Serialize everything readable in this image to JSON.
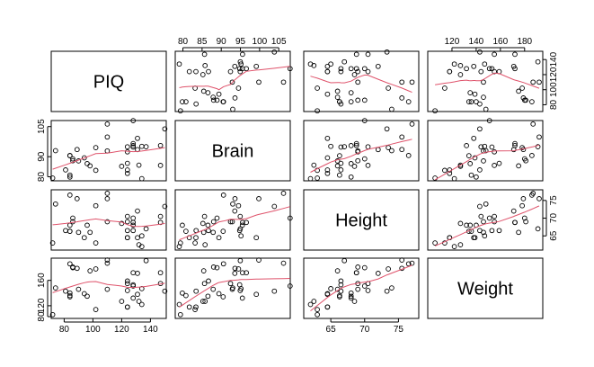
{
  "chart_data": {
    "type": "scatter",
    "variables": [
      "PIQ",
      "Brain",
      "Height",
      "Weight"
    ],
    "axes": {
      "PIQ": {
        "range": [
          71,
          151
        ],
        "ticks": [
          80,
          100,
          120,
          140
        ],
        "tick_labels": [
          "80",
          "100",
          "120",
          "140"
        ]
      },
      "Brain": {
        "range": [
          78,
          108
        ],
        "ticks": [
          80,
          85,
          90,
          95,
          100,
          105
        ],
        "tick_labels": [
          "80",
          "85",
          "90",
          "95",
          "100",
          "105"
        ],
        "side_ticks": [
          80,
          90,
          105
        ],
        "side_tick_labels": [
          "80",
          "90",
          "105"
        ]
      },
      "Height": {
        "range": [
          61,
          78
        ],
        "ticks": [
          65,
          70,
          75
        ],
        "tick_labels": [
          "65",
          "70",
          "75"
        ]
      },
      "Weight": {
        "range": [
          100,
          195
        ],
        "ticks": [
          120,
          140,
          160,
          180
        ],
        "tick_labels": [
          "120",
          "140",
          "160",
          "180"
        ],
        "side_ticks": [
          80,
          120,
          160
        ],
        "side_tick_labels": [
          "80",
          "120",
          "160"
        ]
      }
    },
    "tick_placement": {
      "top": [
        "Brain",
        "Weight"
      ],
      "bottom": [
        "PIQ",
        "Height"
      ],
      "left": [
        "Brain",
        "Weight"
      ],
      "right": [
        "PIQ",
        "Height"
      ]
    },
    "data": {
      "PIQ": [
        124,
        150,
        128,
        134,
        110,
        131,
        98,
        84,
        147,
        124,
        128,
        124,
        147,
        90,
        96,
        120,
        102,
        84,
        86,
        84,
        134,
        128,
        102,
        131,
        84,
        110,
        72,
        124,
        132,
        137,
        110,
        86,
        81,
        128,
        124,
        94,
        74,
        89
      ],
      "Brain": [
        81.69,
        103.84,
        96.54,
        95.15,
        92.88,
        99.13,
        85.43,
        90.49,
        95.55,
        83.39,
        107.95,
        92.41,
        85.65,
        87.89,
        86.54,
        85.22,
        94.51,
        80.8,
        88.91,
        90.59,
        79.06,
        95.5,
        83.18,
        93.55,
        79.86,
        106.25,
        79.35,
        86.67,
        85.78,
        94.96,
        99.79,
        88.0,
        83.43,
        94.81,
        94.94,
        89.4,
        93.0,
        93.59
      ],
      "Height": [
        64.5,
        73.3,
        68.8,
        65.0,
        69.0,
        64.5,
        66.0,
        66.3,
        68.8,
        64.5,
        70.0,
        69.0,
        70.5,
        66.0,
        68.0,
        68.5,
        73.5,
        66.3,
        70.0,
        76.5,
        62.0,
        68.0,
        63.0,
        72.0,
        68.0,
        77.0,
        63.0,
        66.5,
        62.5,
        67.0,
        75.5,
        69.0,
        66.5,
        66.5,
        70.5,
        64.5,
        74.0,
        75.5
      ],
      "Weight": [
        118,
        143,
        172,
        147,
        146,
        138,
        175,
        134,
        172,
        118,
        151,
        155,
        155,
        146,
        135,
        127,
        178,
        136,
        180,
        186,
        122,
        132,
        114,
        171,
        140,
        187,
        106,
        159,
        127,
        191,
        192,
        181,
        143,
        153,
        144,
        139,
        148,
        179
      ]
    },
    "smoother_color": "#DF536B",
    "point_color": "#000000",
    "xlabel": "",
    "ylabel": "",
    "title": ""
  }
}
